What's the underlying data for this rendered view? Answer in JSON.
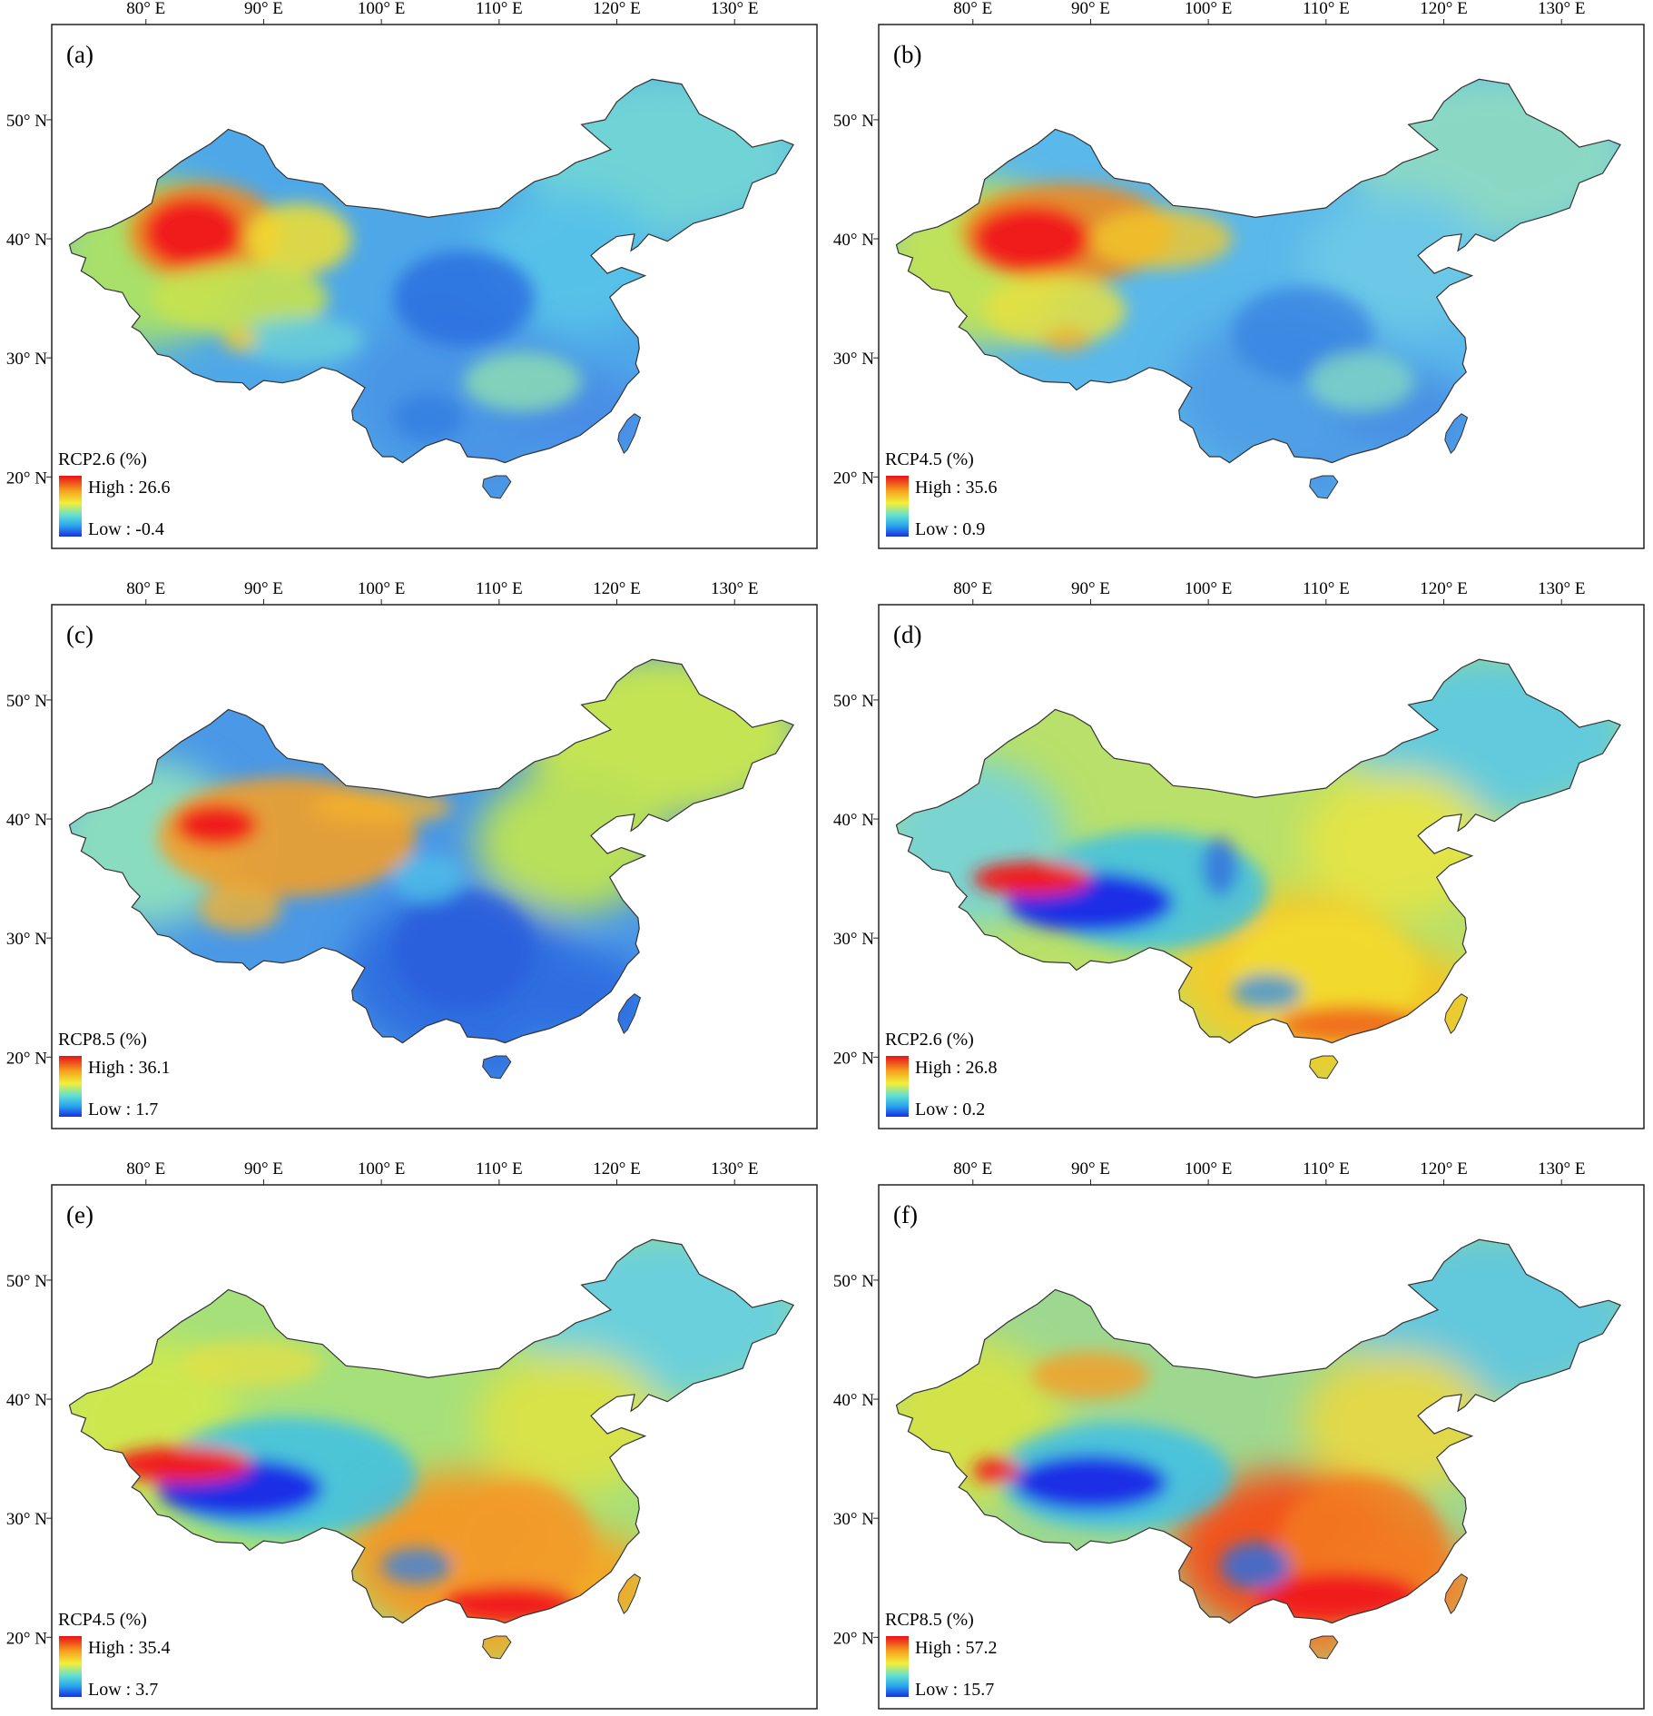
{
  "lon_ticks": [
    "80° E",
    "90° E",
    "100° E",
    "110° E",
    "120° E",
    "130° E"
  ],
  "lat_ticks": [
    "50° N",
    "40° N",
    "30° N",
    "20° N"
  ],
  "panels": [
    {
      "id": "a",
      "label": "(a)",
      "legend": {
        "title": "RCP2.6 (%)",
        "high_text": "High : 26.6",
        "low_text": "Low : -0.4"
      },
      "colors": {
        "bg": "#4ea8e8",
        "north": "#6fd3d6",
        "east": "#57c1e8",
        "south": "#4a95e6",
        "coast": "#4a8ee6",
        "west": "#a8e06a"
      },
      "blobs": [
        {
          "cx": 85,
          "cy": 40.5,
          "rx": 6.5,
          "ry": 4.2,
          "color": "#f08a1e",
          "o": 0.9
        },
        {
          "cx": 84,
          "cy": 40.5,
          "rx": 4.2,
          "ry": 3.0,
          "color": "#f01a1a",
          "o": 1.0
        },
        {
          "cx": 93,
          "cy": 40,
          "rx": 4.5,
          "ry": 3.0,
          "color": "#f2e030",
          "o": 0.85
        },
        {
          "cx": 88,
          "cy": 35,
          "rx": 7.5,
          "ry": 3.0,
          "color": "#c8e24e",
          "o": 0.9
        },
        {
          "cx": 93,
          "cy": 31.5,
          "rx": 5.5,
          "ry": 2.0,
          "color": "#6cd2d8",
          "o": 0.8
        },
        {
          "cx": 88,
          "cy": 31.5,
          "rx": 1.5,
          "ry": 1.0,
          "color": "#f2c82a",
          "o": 0.8
        },
        {
          "cx": 107,
          "cy": 35,
          "rx": 6.0,
          "ry": 4.0,
          "color": "#2a6fe0",
          "o": 0.85
        },
        {
          "cx": 112,
          "cy": 28,
          "rx": 5.0,
          "ry": 2.5,
          "color": "#8fe0b0",
          "o": 0.8
        },
        {
          "cx": 104,
          "cy": 25,
          "rx": 3.0,
          "ry": 2.0,
          "color": "#2e7be0",
          "o": 0.7
        }
      ]
    },
    {
      "id": "b",
      "label": "(b)",
      "legend": {
        "title": "RCP4.5 (%)",
        "high_text": "High : 35.6",
        "low_text": "Low : 0.9"
      },
      "colors": {
        "bg": "#5ab8ea",
        "north": "#8ad8c4",
        "east": "#6cc8e6",
        "south": "#4f9fe6",
        "coast": "#4a92e4",
        "west": "#bfe25a"
      },
      "blobs": [
        {
          "cx": 88,
          "cy": 40.5,
          "rx": 9.0,
          "ry": 4.2,
          "color": "#f08a1e",
          "o": 0.9
        },
        {
          "cx": 85,
          "cy": 40,
          "rx": 5.0,
          "ry": 2.8,
          "color": "#f01a1a",
          "o": 1.0
        },
        {
          "cx": 96,
          "cy": 40,
          "rx": 6.0,
          "ry": 2.5,
          "color": "#f2c82a",
          "o": 0.8
        },
        {
          "cx": 87,
          "cy": 34,
          "rx": 6.0,
          "ry": 3.0,
          "color": "#e6e040",
          "o": 0.85
        },
        {
          "cx": 88,
          "cy": 31.5,
          "rx": 2.0,
          "ry": 1.0,
          "color": "#f2a828",
          "o": 0.7
        },
        {
          "cx": 108,
          "cy": 32,
          "rx": 6.0,
          "ry": 4.0,
          "color": "#3682e2",
          "o": 0.75
        },
        {
          "cx": 113,
          "cy": 28,
          "rx": 4.5,
          "ry": 2.5,
          "color": "#86dcc0",
          "o": 0.75
        }
      ]
    },
    {
      "id": "c",
      "label": "(c)",
      "legend": {
        "title": "RCP8.5 (%)",
        "high_text": "High : 36.1",
        "low_text": "Low : 1.7"
      },
      "colors": {
        "bg": "#4a98e6",
        "north": "#c4e452",
        "east": "#b8e05a",
        "south": "#2f6ee0",
        "coast": "#2f6ee0",
        "west": "#8adcc0"
      },
      "blobs": [
        {
          "cx": 92,
          "cy": 38.5,
          "rx": 11.0,
          "ry": 5.0,
          "color": "#f2a028",
          "o": 0.9
        },
        {
          "cx": 86,
          "cy": 39.5,
          "rx": 3.5,
          "ry": 1.8,
          "color": "#f01a1a",
          "o": 1.0
        },
        {
          "cx": 100,
          "cy": 41,
          "rx": 6.0,
          "ry": 1.5,
          "color": "#f2b02a",
          "o": 0.8
        },
        {
          "cx": 88,
          "cy": 32.5,
          "rx": 3.5,
          "ry": 2.0,
          "color": "#f2b030",
          "o": 0.8
        },
        {
          "cx": 107,
          "cy": 29,
          "rx": 6.0,
          "ry": 5.0,
          "color": "#2a5edc",
          "o": 0.85
        },
        {
          "cx": 104,
          "cy": 35,
          "rx": 3.0,
          "ry": 2.0,
          "color": "#4fc4e8",
          "o": 0.7
        }
      ]
    },
    {
      "id": "d",
      "label": "(d)",
      "legend": {
        "title": "RCP2.6 (%)",
        "high_text": "High : 26.8",
        "low_text": "Low : 0.2"
      },
      "colors": {
        "bg": "#b8e06a",
        "north": "#62cadc",
        "east": "#e2e446",
        "south": "#f2cc2a",
        "coast": "#f2c828",
        "west": "#7ad4d0"
      },
      "blobs": [
        {
          "cx": 110,
          "cy": 27,
          "rx": 8.0,
          "ry": 5.0,
          "color": "#f2dc2e",
          "o": 0.85
        },
        {
          "cx": 112,
          "cy": 22.8,
          "rx": 6.0,
          "ry": 1.5,
          "color": "#f06a1a",
          "o": 0.95
        },
        {
          "cx": 95,
          "cy": 34,
          "rx": 10.0,
          "ry": 5.0,
          "color": "#3cc0e8",
          "o": 0.85
        },
        {
          "cx": 90,
          "cy": 33,
          "rx": 7.0,
          "ry": 2.5,
          "color": "#1a2ee6",
          "o": 1.0
        },
        {
          "cx": 85,
          "cy": 35,
          "rx": 5.0,
          "ry": 1.4,
          "color": "#f01a1a",
          "o": 1.0
        },
        {
          "cx": 105,
          "cy": 25.5,
          "rx": 3.0,
          "ry": 1.5,
          "color": "#3a92e4",
          "o": 0.8
        },
        {
          "cx": 101,
          "cy": 36,
          "rx": 1.5,
          "ry": 2.5,
          "color": "#2e60e0",
          "o": 0.7
        }
      ]
    },
    {
      "id": "e",
      "label": "(e)",
      "legend": {
        "title": "RCP4.5 (%)",
        "high_text": "High : 35.4",
        "low_text": "Low : 3.7"
      },
      "colors": {
        "bg": "#a6e07a",
        "north": "#6ad0dc",
        "east": "#d8e24a",
        "south": "#f29a28",
        "coast": "#f2a828",
        "west": "#cde850"
      },
      "blobs": [
        {
          "cx": 112,
          "cy": 28,
          "rx": 6.0,
          "ry": 5.0,
          "color": "#f29a28",
          "o": 0.85
        },
        {
          "cx": 111,
          "cy": 22.8,
          "rx": 5.5,
          "ry": 1.6,
          "color": "#f01a1a",
          "o": 1.0
        },
        {
          "cx": 92,
          "cy": 33.5,
          "rx": 11.0,
          "ry": 5.0,
          "color": "#3cc0e8",
          "o": 0.85
        },
        {
          "cx": 88,
          "cy": 32.5,
          "rx": 7.0,
          "ry": 2.5,
          "color": "#1a2ee6",
          "o": 1.0
        },
        {
          "cx": 83,
          "cy": 34.5,
          "rx": 6.0,
          "ry": 1.5,
          "color": "#f01a1a",
          "o": 1.0
        },
        {
          "cx": 103,
          "cy": 26,
          "rx": 3.0,
          "ry": 1.5,
          "color": "#3a82e4",
          "o": 0.8
        },
        {
          "cx": 89,
          "cy": 43,
          "rx": 6.0,
          "ry": 2.0,
          "color": "#e8e040",
          "o": 0.7
        }
      ]
    },
    {
      "id": "f",
      "label": "(f)",
      "legend": {
        "title": "RCP8.5 (%)",
        "high_text": "High : 57.2",
        "low_text": "Low : 15.7"
      },
      "colors": {
        "bg": "#9ed890",
        "north": "#62c8dc",
        "east": "#e2d84a",
        "south": "#f2521a",
        "coast": "#f2822a",
        "west": "#d2e24a"
      },
      "blobs": [
        {
          "cx": 113,
          "cy": 28,
          "rx": 7.0,
          "ry": 5.5,
          "color": "#f27a22",
          "o": 0.85
        },
        {
          "cx": 111,
          "cy": 23.5,
          "rx": 7.0,
          "ry": 2.0,
          "color": "#f01a1a",
          "o": 1.0
        },
        {
          "cx": 90,
          "cy": 42,
          "rx": 5.0,
          "ry": 2.0,
          "color": "#f2a02a",
          "o": 0.85
        },
        {
          "cx": 92,
          "cy": 33.5,
          "rx": 10.0,
          "ry": 4.5,
          "color": "#3cc0e8",
          "o": 0.85
        },
        {
          "cx": 90,
          "cy": 33,
          "rx": 6.5,
          "ry": 2.3,
          "color": "#1a2ee6",
          "o": 1.0
        },
        {
          "cx": 82,
          "cy": 34,
          "rx": 2.0,
          "ry": 1.0,
          "color": "#f01a1a",
          "o": 1.0
        },
        {
          "cx": 104,
          "cy": 26,
          "rx": 3.0,
          "ry": 2.0,
          "color": "#2e6ee0",
          "o": 0.85
        }
      ]
    }
  ]
}
